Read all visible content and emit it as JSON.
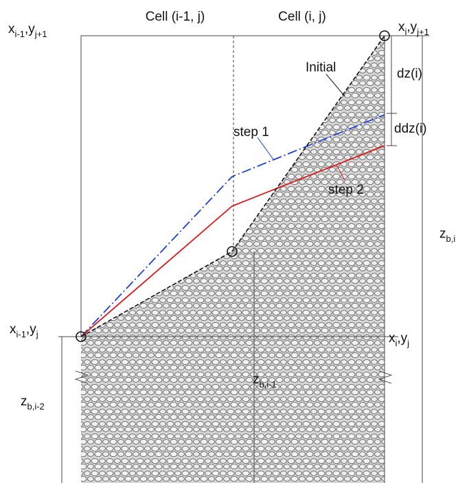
{
  "cells": [
    "Cell (i-1, j)",
    "Cell (i, j)"
  ],
  "corners": [
    {
      "parts": [
        "x",
        "i-1",
        ",y",
        "j+1"
      ]
    },
    {
      "parts": [
        "x",
        "i",
        ",y",
        "j+1"
      ]
    },
    {
      "parts": [
        "x",
        "i-1",
        ",y",
        "j"
      ]
    },
    {
      "parts": [
        "x",
        "i",
        ",y",
        "j"
      ]
    }
  ],
  "curves": [
    "Initial",
    "step 1",
    "step 2"
  ],
  "dimensions": [
    "dz(i)",
    "ddz(i)"
  ],
  "depths": [
    {
      "base": "z",
      "sub": "b,i"
    },
    {
      "base": "z",
      "sub": "b,i-1"
    },
    {
      "base": "z",
      "sub": "b,i-2"
    }
  ]
}
